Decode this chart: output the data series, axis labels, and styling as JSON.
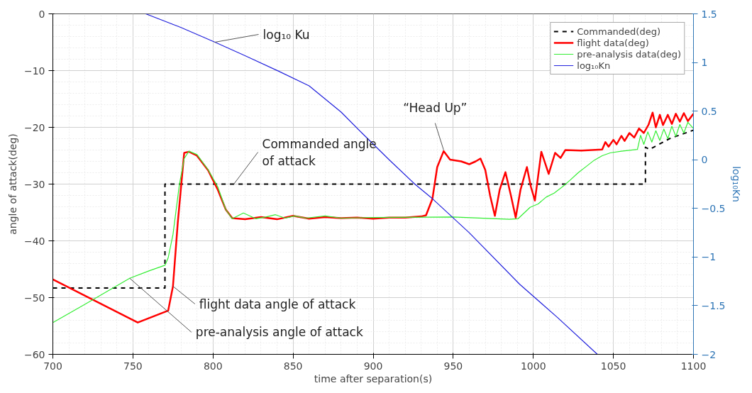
{
  "chart_data": {
    "type": "line",
    "xlabel": "time after separation(s)",
    "ylabel": "angle of attack(deg)",
    "y2label": "log₁₀Kn",
    "xlim": [
      700,
      1100
    ],
    "xticks": [
      700,
      750,
      800,
      850,
      900,
      950,
      1000,
      1050,
      1100
    ],
    "ylim": [
      -60,
      0
    ],
    "yticks": [
      -60,
      -50,
      -40,
      -30,
      -20,
      -10,
      0
    ],
    "y2lim": [
      -2,
      1.5
    ],
    "y2ticks": [
      -2,
      -1.5,
      -1,
      -0.5,
      0,
      0.5,
      1,
      1.5
    ],
    "grid": true,
    "legend": "top right",
    "series": [
      {
        "name": "Commanded(deg)",
        "color": "#000000",
        "line_style": "dashed",
        "x": [
          700,
          770,
          770,
          1070,
          1070,
          1072.5,
          1085,
          1100
        ],
        "values": [
          -48.3,
          -48.3,
          -30,
          -30,
          -23.5,
          -23.9,
          -22,
          -20.5
        ]
      },
      {
        "name": "flight data(deg)",
        "color": "#ff0000",
        "x": [
          700,
          753,
          772,
          775,
          778,
          782,
          785,
          790,
          797,
          803,
          808,
          812,
          820,
          830,
          840,
          850,
          860,
          870,
          880,
          890,
          900,
          910,
          920,
          930,
          933,
          937,
          940,
          944,
          948,
          955,
          960,
          964,
          967,
          970,
          973,
          976,
          979,
          982.6,
          986,
          989,
          992,
          996,
          998.5,
          1001,
          1005,
          1009.6,
          1013.6,
          1017,
          1020,
          1030,
          1043,
          1045,
          1047,
          1050,
          1052,
          1055,
          1057,
          1060,
          1063,
          1066,
          1069,
          1072,
          1074.5,
          1076.5,
          1079,
          1081,
          1084,
          1086.5,
          1089,
          1091.5,
          1094,
          1096.5,
          1100
        ],
        "values": [
          -46.8,
          -54.4,
          -52.3,
          -48,
          -36.8,
          -24.5,
          -24.3,
          -25,
          -27.6,
          -31,
          -34.5,
          -36,
          -36.2,
          -35.8,
          -36.2,
          -35.6,
          -36.1,
          -35.8,
          -36,
          -35.9,
          -36.1,
          -35.9,
          -35.9,
          -35.7,
          -35.5,
          -32.6,
          -27,
          -24.2,
          -25.7,
          -26,
          -26.5,
          -26,
          -25.5,
          -27.5,
          -32,
          -35.6,
          -31,
          -27.9,
          -32,
          -35.9,
          -31,
          -27,
          -30.5,
          -32.9,
          -24.3,
          -28.2,
          -24.5,
          -25.4,
          -24,
          -24.1,
          -23.9,
          -22.6,
          -23.4,
          -22.2,
          -23,
          -21.5,
          -22.4,
          -21,
          -21.8,
          -20.2,
          -21,
          -19.5,
          -17.4,
          -20,
          -17.8,
          -19.6,
          -17.8,
          -19.4,
          -17.6,
          -19,
          -17.5,
          -18.9,
          -17.6
        ]
      },
      {
        "name": "pre-analysis data(deg)",
        "color": "#33ee33",
        "x": [
          700,
          720,
          748,
          760,
          770,
          772,
          775,
          779,
          782,
          785,
          790,
          797,
          803,
          808,
          812,
          819,
          826.7,
          833,
          839,
          845,
          851,
          858,
          870,
          880,
          900,
          950,
          985,
          990.5,
          998,
          1003,
          1008,
          1013,
          1018.5,
          1023,
          1028,
          1033.5,
          1038,
          1043,
          1048,
          1055,
          1065,
          1067,
          1069,
          1071.5,
          1074,
          1076.5,
          1079,
          1081.5,
          1084,
          1086.5,
          1089,
          1091.5,
          1094,
          1096.5,
          1100
        ],
        "values": [
          -54.4,
          -51.2,
          -46.6,
          -45.3,
          -44.3,
          -43,
          -38.9,
          -30.1,
          -25.5,
          -24.2,
          -24.8,
          -27.5,
          -30.5,
          -34.5,
          -36.1,
          -35.1,
          -36.1,
          -35.8,
          -35.4,
          -36,
          -35.6,
          -36,
          -35.6,
          -36,
          -35.9,
          -35.8,
          -36.2,
          -36.1,
          -34.1,
          -33.5,
          -32.3,
          -31.6,
          -30.4,
          -29.3,
          -28,
          -26.8,
          -25.8,
          -25,
          -24.5,
          -24.2,
          -23.9,
          -21.4,
          -23,
          -20.8,
          -22.6,
          -20.6,
          -22.3,
          -20.3,
          -22,
          -19.8,
          -21.6,
          -19.5,
          -21,
          -19.1,
          -20.2
        ]
      },
      {
        "name": "log₁₀Kn",
        "color": "#2222dd",
        "axis": "y2",
        "x": [
          758,
          780,
          801,
          820,
          841,
          860,
          880,
          893,
          910,
          926,
          937,
          960,
          991.5,
          1015,
          1040
        ],
        "values": [
          1.5,
          1.36,
          1.21,
          1.07,
          0.91,
          0.76,
          0.49,
          0.275,
          0.0,
          -0.25,
          -0.4,
          -0.75,
          -1.28,
          -1.62,
          -2.0
        ]
      }
    ],
    "annotations": [
      {
        "text": "log₁₀ Ku",
        "x": 801,
        "y": -5
      },
      {
        "text": "Commanded angle of attack",
        "x": 813,
        "y": -30
      },
      {
        "text": "flight data angle of attack",
        "x": 775,
        "y": -48
      },
      {
        "text": "pre-analysis angle of attack",
        "x": 748,
        "y": -46.6
      },
      {
        "text": "“Head Up”",
        "x": 944,
        "y": -24
      }
    ]
  }
}
